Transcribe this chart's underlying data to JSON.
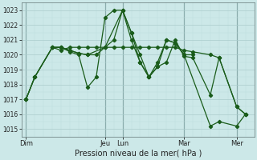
{
  "background_color": "#cce8e8",
  "grid_color_major": "#aacccc",
  "grid_color_minor": "#bbdddd",
  "line_color": "#1a5c1a",
  "ylim": [
    1014.5,
    1023.5
  ],
  "yticks": [
    1015,
    1016,
    1017,
    1018,
    1019,
    1020,
    1021,
    1022,
    1023
  ],
  "xlabel": "Pression niveau de la mer( hPa )",
  "day_labels": [
    "Dim",
    "Jeu",
    "Lun",
    "Mar",
    "Mer"
  ],
  "day_positions": [
    0,
    9,
    11,
    18,
    24
  ],
  "xlim": [
    -0.5,
    26
  ],
  "lines": [
    {
      "x": [
        0,
        1,
        3,
        4,
        5,
        6,
        7,
        8,
        9,
        11,
        12,
        13,
        14,
        15,
        16,
        17,
        18,
        19
      ],
      "y": [
        1017.0,
        1018.5,
        1020.5,
        1020.5,
        1020.3,
        1020.1,
        1020.0,
        1020.0,
        1020.5,
        1023.0,
        1021.5,
        1019.5,
        1018.5,
        1019.2,
        1021.0,
        1020.8,
        1020.0,
        1020.0
      ]
    },
    {
      "x": [
        0,
        1,
        3,
        4,
        5,
        6,
        7,
        8,
        9,
        10,
        11,
        12,
        13,
        14,
        15,
        16,
        17,
        18,
        19,
        21,
        22,
        24,
        25
      ],
      "y": [
        1017.0,
        1018.5,
        1020.5,
        1020.5,
        1020.2,
        1020.0,
        1017.8,
        1018.5,
        1022.5,
        1023.0,
        1023.0,
        1021.0,
        1019.5,
        1018.5,
        1019.2,
        1019.5,
        1021.0,
        1019.9,
        1019.8,
        1017.3,
        1019.8,
        1016.5,
        1016.0
      ]
    },
    {
      "x": [
        0,
        1,
        3,
        4,
        5,
        6,
        7,
        9,
        10,
        11,
        12,
        13,
        14,
        15,
        16,
        17,
        18,
        21,
        22,
        24,
        25
      ],
      "y": [
        1017.0,
        1018.5,
        1020.5,
        1020.5,
        1020.3,
        1020.1,
        1020.0,
        1020.5,
        1021.0,
        1023.0,
        1021.5,
        1020.0,
        1018.5,
        1019.5,
        1021.0,
        1020.8,
        1020.0,
        1015.2,
        1015.5,
        1015.2,
        1016.0
      ]
    },
    {
      "x": [
        3,
        4,
        5,
        6,
        7,
        8,
        9,
        10,
        11,
        12,
        13,
        14,
        15,
        16,
        17,
        18,
        19,
        21,
        22,
        24,
        25
      ],
      "y": [
        1020.5,
        1020.3,
        1020.5,
        1020.5,
        1020.5,
        1020.5,
        1020.5,
        1020.5,
        1020.5,
        1020.5,
        1020.5,
        1020.5,
        1020.5,
        1020.5,
        1020.5,
        1020.3,
        1020.2,
        1020.0,
        1019.8,
        1016.5,
        1016.0
      ]
    }
  ],
  "figsize": [
    3.2,
    2.0
  ],
  "dpi": 100
}
